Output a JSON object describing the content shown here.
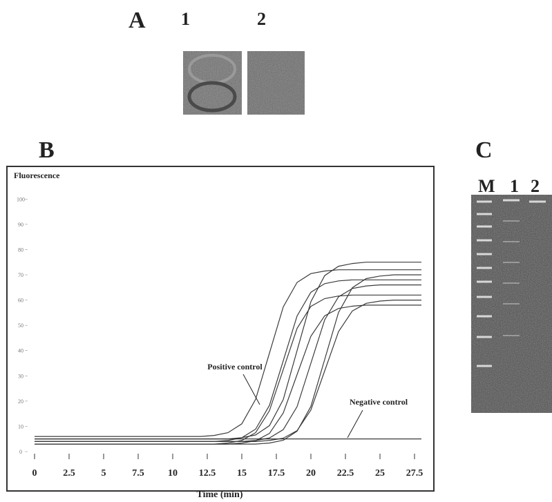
{
  "figure": {
    "panel_a": {
      "label": "A",
      "lanes": [
        "1",
        "2"
      ]
    },
    "panel_b_label": "B",
    "panel_c": {
      "label": "C",
      "lanes": [
        "M",
        "1",
        "2"
      ]
    }
  },
  "chart_data": {
    "type": "line",
    "y_label": "Fluorescence",
    "x_label": "Time (min)",
    "annotations": [
      "Positive control",
      "Negative control"
    ],
    "x": [
      0,
      1,
      2,
      3,
      4,
      5,
      6,
      7,
      8,
      9,
      10,
      11,
      12,
      13,
      14,
      15,
      16,
      17,
      18,
      19,
      20,
      21,
      22,
      23,
      24,
      25,
      26,
      27,
      28
    ],
    "series": [
      {
        "color": "#3a3a3a",
        "values": [
          6,
          6,
          6,
          6,
          6,
          6,
          6,
          6,
          6,
          6,
          6,
          6,
          6,
          6.4,
          7.5,
          11,
          20.7,
          39,
          57.3,
          67,
          70.5,
          71.5,
          72,
          72,
          72,
          72,
          72,
          72,
          72
        ]
      },
      {
        "color": "#3a3a3a",
        "values": [
          4,
          4,
          4,
          4,
          4,
          4,
          4,
          4,
          4,
          4,
          4,
          4,
          4,
          4,
          4.4,
          5.5,
          8.9,
          18.3,
          36,
          53.7,
          63.1,
          66.5,
          67.6,
          68,
          68,
          68,
          68,
          68,
          68
        ]
      },
      {
        "color": "#3a3a3a",
        "values": [
          3,
          3,
          3,
          3,
          3,
          3,
          3,
          3,
          3,
          3,
          3,
          3,
          3,
          3,
          3.4,
          4.4,
          7.5,
          16.2,
          32.5,
          48.8,
          57.5,
          60.6,
          61.6,
          62,
          62,
          62,
          62,
          62,
          62
        ]
      },
      {
        "color": "#3a3a3a",
        "values": [
          5,
          5,
          5,
          5,
          5,
          5,
          5,
          5,
          5,
          5,
          5,
          5,
          5,
          5,
          5,
          5.5,
          6.6,
          10.3,
          20.6,
          40,
          59.4,
          69.7,
          73.4,
          74.5,
          75,
          75,
          75,
          75,
          75
        ]
      },
      {
        "color": "#3a3a3a",
        "values": [
          3,
          3,
          3,
          3,
          3,
          3,
          3,
          3,
          3,
          3,
          3,
          3,
          3,
          3,
          3,
          3.4,
          4.3,
          7.2,
          15.3,
          30.5,
          45.7,
          53.8,
          56.7,
          57.6,
          58,
          58,
          58,
          58,
          58
        ]
      },
      {
        "color": "#3a3a3a",
        "values": [
          4,
          4,
          4,
          4,
          4,
          4,
          4,
          4,
          4,
          4,
          4,
          4,
          4,
          4,
          4,
          4,
          4.4,
          5.4,
          8.7,
          17.8,
          35,
          52.2,
          61.3,
          64.6,
          65.6,
          66,
          66,
          66,
          66
        ]
      },
      {
        "color": "#3a3a3a",
        "values": [
          3,
          3,
          3,
          3,
          3,
          3,
          3,
          3,
          3,
          3,
          3,
          3,
          3,
          3,
          3,
          3,
          3,
          3.4,
          4.5,
          8.1,
          17.9,
          36.5,
          55.1,
          64.9,
          68.5,
          69.5,
          70,
          70,
          70
        ]
      },
      {
        "color": "#3a3a3a",
        "values": [
          4,
          4,
          4,
          4,
          4,
          4,
          4,
          4,
          4,
          4,
          4,
          4,
          4,
          4,
          4,
          4,
          4,
          4.4,
          5.3,
          8.3,
          16.5,
          32,
          47.5,
          55.7,
          58.7,
          59.6,
          60,
          60,
          60
        ]
      },
      {
        "color": "#222222",
        "values": [
          5,
          5,
          5,
          5,
          5,
          5,
          5,
          5,
          5,
          5,
          5,
          5,
          5,
          5,
          5,
          5,
          5,
          5,
          5,
          5,
          5,
          5,
          5,
          5,
          5,
          5,
          5,
          5,
          5
        ]
      }
    ],
    "xlim": [
      -0.5,
      28.5
    ],
    "ylim": [
      -3,
      105
    ],
    "xticks": [
      0,
      2.5,
      5,
      7.5,
      10,
      12.5,
      15,
      17.5,
      20,
      22.5,
      25,
      27.5
    ],
    "yticks": [
      0,
      10,
      20,
      30,
      40,
      50,
      60,
      70,
      80,
      90,
      100
    ]
  }
}
